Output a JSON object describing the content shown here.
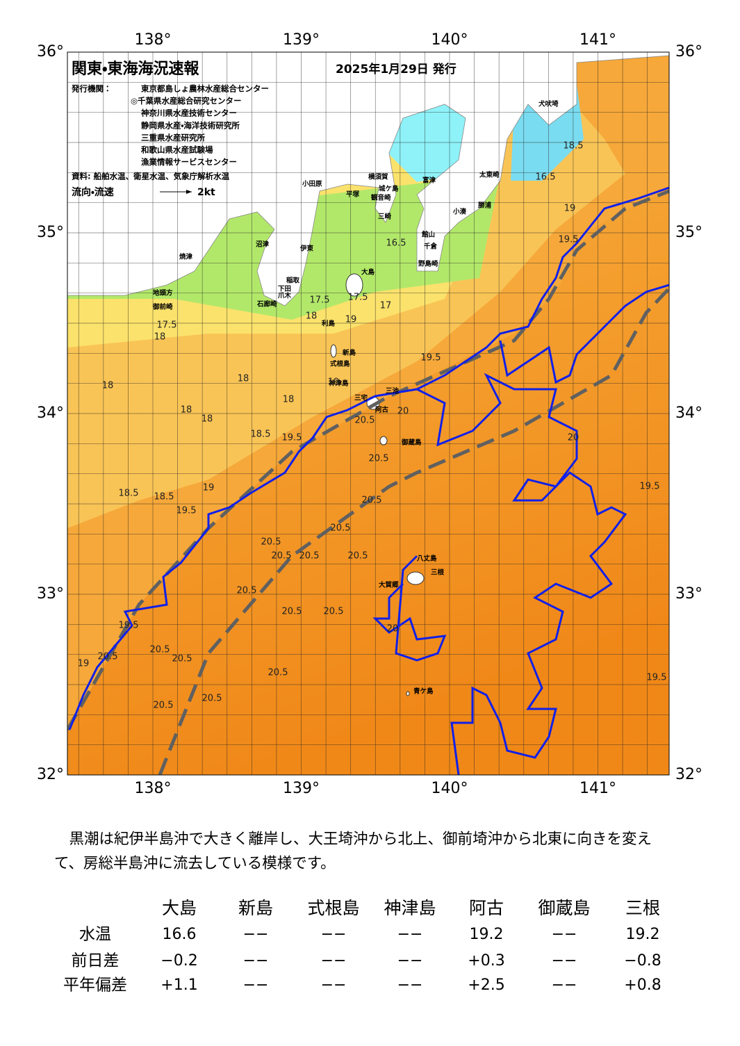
{
  "map": {
    "title": "関東・東海海況速報",
    "date": "2025年1月29日 発行",
    "issuer_label": "発行機関：",
    "issuers": [
      "東京都島しょ農林水産総合センター",
      "◎千葉県水産総合研究センター",
      "神奈川県水産技術センター",
      "静岡県水産・海洋技術研究所",
      "三重県水産研究所",
      "和歌山県水産試験場",
      "漁業情報サービスセンター"
    ],
    "source": "資料: 船舶水温、衛星水温、気象庁解析水温",
    "legend": {
      "label": "流向・流速",
      "scale": "2kt"
    },
    "lon_labels": [
      "138°",
      "139°",
      "140°",
      "141°"
    ],
    "lat_labels": [
      "36°",
      "35°",
      "34°",
      "33°",
      "32°"
    ],
    "places": [
      "犬吠埼",
      "太東崎",
      "勝浦",
      "小湊",
      "富津",
      "館山",
      "千倉",
      "野島崎",
      "平塚",
      "横須賀",
      "城ケ島",
      "観音崎",
      "三崎",
      "小田原",
      "沼津",
      "伊東",
      "焼津",
      "御前崎",
      "地頭方",
      "稲取",
      "下田",
      "爪木",
      "石廊崎",
      "大島",
      "利島",
      "新島",
      "式根島",
      "神津島",
      "三宅",
      "三池",
      "阿古",
      "御蔵島",
      "八丈島",
      "三根",
      "大賀郷",
      "青ケ島"
    ],
    "contour_labels": [
      "18.5",
      "16.5",
      "19",
      "19.5",
      "17.5",
      "18",
      "18",
      "18",
      "18",
      "18",
      "18",
      "18.5",
      "18.5",
      "18.5",
      "19",
      "19.5",
      "19.5",
      "19.5",
      "19",
      "20",
      "20.5",
      "20.5",
      "20.5",
      "20.5",
      "20.5",
      "20.5",
      "20.5",
      "20.5",
      "20.5",
      "20.5",
      "20.5",
      "20.5",
      "20.5",
      "20.5",
      "20.5",
      "20.5",
      "20.5",
      "19.5",
      "19",
      "20",
      "20",
      "19.5",
      "19.5",
      "17.5",
      "17",
      "16.5",
      "18",
      "17.5",
      "19"
    ]
  },
  "description": "黒潮は紀伊半島沖で大きく離岸し、大王埼沖から北上、御前埼沖から北東に向きを変えて、房総半島沖に流去している模様です。",
  "table": {
    "columns": [
      "大島",
      "新島",
      "式根島",
      "神津島",
      "阿古",
      "御蔵島",
      "三根"
    ],
    "rows": [
      {
        "label": "水温",
        "values": [
          "16.6",
          "−−",
          "−−",
          "−−",
          "19.2",
          "−−",
          "19.2"
        ]
      },
      {
        "label": "前日差",
        "values": [
          "−0.2",
          "−−",
          "−−",
          "−−",
          "+0.3",
          "−−",
          "−0.8"
        ]
      },
      {
        "label": "平年偏差",
        "values": [
          "+1.1",
          "−−",
          "−−",
          "−−",
          "+2.5",
          "−−",
          "+0.8"
        ]
      }
    ]
  }
}
